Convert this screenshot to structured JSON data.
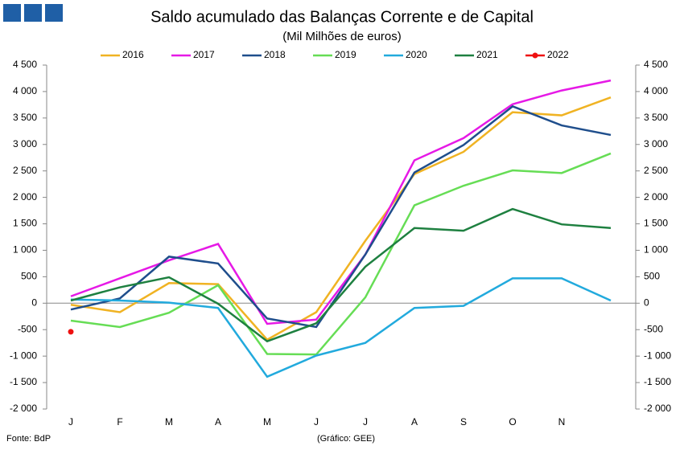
{
  "chart_data": {
    "type": "line",
    "title": "Saldo acumulado das Balanças Corrente e de Capital",
    "subtitle": "(Mil Milhões de euros)",
    "source": "Fonte: BdP",
    "credit": "(Gráfico: GEE)",
    "categories": [
      "J",
      "F",
      "M",
      "A",
      "M",
      "J",
      "J",
      "A",
      "S",
      "O",
      "N",
      null
    ],
    "series": [
      {
        "name": "2016",
        "color": "#f0b323",
        "values": [
          -30,
          -170,
          380,
          360,
          -690,
          -170,
          1180,
          2440,
          2860,
          3610,
          3550,
          3890
        ]
      },
      {
        "name": "2017",
        "color": "#e619e6",
        "values": [
          130,
          470,
          810,
          1120,
          -390,
          -310,
          920,
          2700,
          3120,
          3760,
          4020,
          4210
        ]
      },
      {
        "name": "2018",
        "color": "#1f4e8c",
        "values": [
          -120,
          90,
          880,
          750,
          -290,
          -450,
          920,
          2470,
          2990,
          3720,
          3360,
          3180
        ]
      },
      {
        "name": "2019",
        "color": "#66dd55",
        "values": [
          -330,
          -450,
          -180,
          340,
          -960,
          -970,
          110,
          1850,
          2220,
          2510,
          2460,
          2830
        ]
      },
      {
        "name": "2020",
        "color": "#22aadd",
        "values": [
          70,
          50,
          10,
          -90,
          -1390,
          -990,
          -750,
          -90,
          -50,
          470,
          470,
          50
        ]
      },
      {
        "name": "2021",
        "color": "#1e8040",
        "values": [
          50,
          300,
          490,
          -10,
          -720,
          -380,
          690,
          1420,
          1370,
          1780,
          1490,
          1420
        ]
      },
      {
        "name": "2022",
        "color": "#ee1111",
        "marker": "circle",
        "values": [
          -540,
          null,
          null,
          null,
          null,
          null,
          null,
          null,
          null,
          null,
          null,
          null
        ]
      }
    ],
    "ylim": [
      -2000,
      4500
    ],
    "yticks": [
      {
        "value": -2000,
        "label": "-2 000"
      },
      {
        "value": -1500,
        "label": "-1 500"
      },
      {
        "value": -1000,
        "label": "-1 000"
      },
      -500,
      0,
      500,
      {
        "value": 1000,
        "label": "1 000"
      },
      {
        "value": 1500,
        "label": "1 500"
      },
      {
        "value": 2000,
        "label": "2 000"
      },
      {
        "value": 2500,
        "label": "2 500"
      },
      {
        "value": 3000,
        "label": "3 000"
      },
      {
        "value": 3500,
        "label": "3 500"
      },
      {
        "value": 4000,
        "label": "4 000"
      },
      {
        "value": 4500,
        "label": "4 500"
      }
    ],
    "grid": false
  }
}
